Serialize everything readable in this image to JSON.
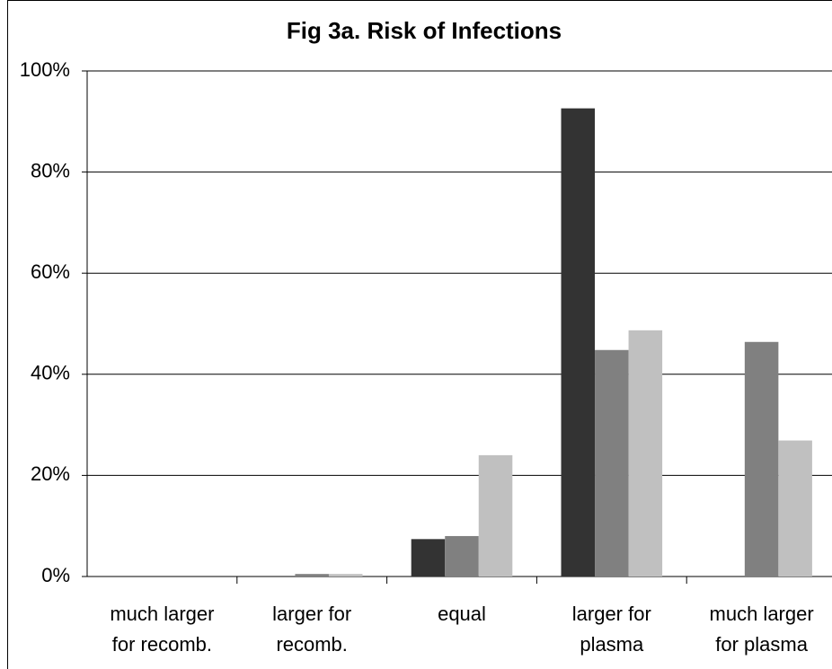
{
  "chart_data": {
    "type": "bar",
    "title": "Fig 3a. Risk of Infections",
    "categories": [
      "much larger for recomb.",
      "larger for recomb.",
      "equal",
      "larger for plasma",
      "much larger for plasma"
    ],
    "series": [
      {
        "color": "#333333",
        "values": [
          0,
          0,
          7.4,
          92.6,
          0
        ]
      },
      {
        "color": "#808080",
        "values": [
          0,
          0.5,
          8.0,
          44.8,
          46.4
        ]
      },
      {
        "color": "#c0c0c0",
        "values": [
          0,
          0.5,
          24,
          48.7,
          26.9
        ]
      }
    ],
    "ylim": [
      0,
      100
    ],
    "yticks": [
      {
        "value": 0,
        "label": "0%"
      },
      {
        "value": 20,
        "label": "20%"
      },
      {
        "value": 40,
        "label": "40%"
      },
      {
        "value": 60,
        "label": "60%"
      },
      {
        "value": 80,
        "label": "80%"
      },
      {
        "value": 100,
        "label": "100%"
      }
    ],
    "grid": true
  }
}
